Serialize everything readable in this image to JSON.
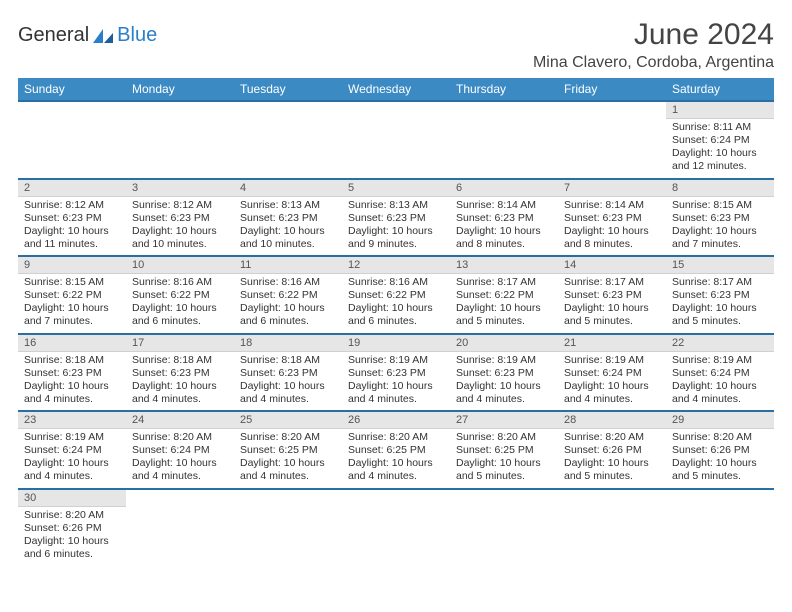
{
  "brand": {
    "text1": "General",
    "text2": "Blue"
  },
  "title": "June 2024",
  "location": "Mina Clavero, Cordoba, Argentina",
  "colors": {
    "header_bg": "#3b8ac4",
    "header_text": "#ffffff",
    "row_border": "#2a6fa4",
    "daynum_bg": "#e6e6e6",
    "text": "#333333",
    "logo_blue": "#2a7fc9"
  },
  "weekdays": [
    "Sunday",
    "Monday",
    "Tuesday",
    "Wednesday",
    "Thursday",
    "Friday",
    "Saturday"
  ],
  "weeks": [
    [
      null,
      null,
      null,
      null,
      null,
      null,
      {
        "n": "1",
        "sr": "Sunrise: 8:11 AM",
        "ss": "Sunset: 6:24 PM",
        "dl": "Daylight: 10 hours and 12 minutes."
      }
    ],
    [
      {
        "n": "2",
        "sr": "Sunrise: 8:12 AM",
        "ss": "Sunset: 6:23 PM",
        "dl": "Daylight: 10 hours and 11 minutes."
      },
      {
        "n": "3",
        "sr": "Sunrise: 8:12 AM",
        "ss": "Sunset: 6:23 PM",
        "dl": "Daylight: 10 hours and 10 minutes."
      },
      {
        "n": "4",
        "sr": "Sunrise: 8:13 AM",
        "ss": "Sunset: 6:23 PM",
        "dl": "Daylight: 10 hours and 10 minutes."
      },
      {
        "n": "5",
        "sr": "Sunrise: 8:13 AM",
        "ss": "Sunset: 6:23 PM",
        "dl": "Daylight: 10 hours and 9 minutes."
      },
      {
        "n": "6",
        "sr": "Sunrise: 8:14 AM",
        "ss": "Sunset: 6:23 PM",
        "dl": "Daylight: 10 hours and 8 minutes."
      },
      {
        "n": "7",
        "sr": "Sunrise: 8:14 AM",
        "ss": "Sunset: 6:23 PM",
        "dl": "Daylight: 10 hours and 8 minutes."
      },
      {
        "n": "8",
        "sr": "Sunrise: 8:15 AM",
        "ss": "Sunset: 6:23 PM",
        "dl": "Daylight: 10 hours and 7 minutes."
      }
    ],
    [
      {
        "n": "9",
        "sr": "Sunrise: 8:15 AM",
        "ss": "Sunset: 6:22 PM",
        "dl": "Daylight: 10 hours and 7 minutes."
      },
      {
        "n": "10",
        "sr": "Sunrise: 8:16 AM",
        "ss": "Sunset: 6:22 PM",
        "dl": "Daylight: 10 hours and 6 minutes."
      },
      {
        "n": "11",
        "sr": "Sunrise: 8:16 AM",
        "ss": "Sunset: 6:22 PM",
        "dl": "Daylight: 10 hours and 6 minutes."
      },
      {
        "n": "12",
        "sr": "Sunrise: 8:16 AM",
        "ss": "Sunset: 6:22 PM",
        "dl": "Daylight: 10 hours and 6 minutes."
      },
      {
        "n": "13",
        "sr": "Sunrise: 8:17 AM",
        "ss": "Sunset: 6:22 PM",
        "dl": "Daylight: 10 hours and 5 minutes."
      },
      {
        "n": "14",
        "sr": "Sunrise: 8:17 AM",
        "ss": "Sunset: 6:23 PM",
        "dl": "Daylight: 10 hours and 5 minutes."
      },
      {
        "n": "15",
        "sr": "Sunrise: 8:17 AM",
        "ss": "Sunset: 6:23 PM",
        "dl": "Daylight: 10 hours and 5 minutes."
      }
    ],
    [
      {
        "n": "16",
        "sr": "Sunrise: 8:18 AM",
        "ss": "Sunset: 6:23 PM",
        "dl": "Daylight: 10 hours and 4 minutes."
      },
      {
        "n": "17",
        "sr": "Sunrise: 8:18 AM",
        "ss": "Sunset: 6:23 PM",
        "dl": "Daylight: 10 hours and 4 minutes."
      },
      {
        "n": "18",
        "sr": "Sunrise: 8:18 AM",
        "ss": "Sunset: 6:23 PM",
        "dl": "Daylight: 10 hours and 4 minutes."
      },
      {
        "n": "19",
        "sr": "Sunrise: 8:19 AM",
        "ss": "Sunset: 6:23 PM",
        "dl": "Daylight: 10 hours and 4 minutes."
      },
      {
        "n": "20",
        "sr": "Sunrise: 8:19 AM",
        "ss": "Sunset: 6:23 PM",
        "dl": "Daylight: 10 hours and 4 minutes."
      },
      {
        "n": "21",
        "sr": "Sunrise: 8:19 AM",
        "ss": "Sunset: 6:24 PM",
        "dl": "Daylight: 10 hours and 4 minutes."
      },
      {
        "n": "22",
        "sr": "Sunrise: 8:19 AM",
        "ss": "Sunset: 6:24 PM",
        "dl": "Daylight: 10 hours and 4 minutes."
      }
    ],
    [
      {
        "n": "23",
        "sr": "Sunrise: 8:19 AM",
        "ss": "Sunset: 6:24 PM",
        "dl": "Daylight: 10 hours and 4 minutes."
      },
      {
        "n": "24",
        "sr": "Sunrise: 8:20 AM",
        "ss": "Sunset: 6:24 PM",
        "dl": "Daylight: 10 hours and 4 minutes."
      },
      {
        "n": "25",
        "sr": "Sunrise: 8:20 AM",
        "ss": "Sunset: 6:25 PM",
        "dl": "Daylight: 10 hours and 4 minutes."
      },
      {
        "n": "26",
        "sr": "Sunrise: 8:20 AM",
        "ss": "Sunset: 6:25 PM",
        "dl": "Daylight: 10 hours and 4 minutes."
      },
      {
        "n": "27",
        "sr": "Sunrise: 8:20 AM",
        "ss": "Sunset: 6:25 PM",
        "dl": "Daylight: 10 hours and 5 minutes."
      },
      {
        "n": "28",
        "sr": "Sunrise: 8:20 AM",
        "ss": "Sunset: 6:26 PM",
        "dl": "Daylight: 10 hours and 5 minutes."
      },
      {
        "n": "29",
        "sr": "Sunrise: 8:20 AM",
        "ss": "Sunset: 6:26 PM",
        "dl": "Daylight: 10 hours and 5 minutes."
      }
    ],
    [
      {
        "n": "30",
        "sr": "Sunrise: 8:20 AM",
        "ss": "Sunset: 6:26 PM",
        "dl": "Daylight: 10 hours and 6 minutes."
      },
      null,
      null,
      null,
      null,
      null,
      null
    ]
  ]
}
